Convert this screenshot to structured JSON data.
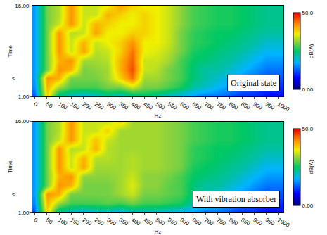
{
  "chart_data": [
    {
      "type": "heatmap",
      "x_label": "Hz",
      "y_label": "Time",
      "y_unit": "s",
      "annotations": [
        "Original state"
      ],
      "xlim": [
        -10,
        1020
      ],
      "xticks": [
        0,
        50,
        100,
        150,
        200,
        250,
        300,
        350,
        400,
        450,
        500,
        550,
        600,
        650,
        700,
        750,
        800,
        850,
        900,
        950,
        1000
      ],
      "ylim": [
        1,
        16
      ],
      "yticks": [
        {
          "value": 1,
          "label": "1.00"
        },
        {
          "value": 16,
          "label": "16.00"
        }
      ],
      "x": [
        0,
        50,
        100,
        150,
        200,
        250,
        300,
        350,
        400,
        450,
        500,
        550,
        600,
        650,
        700,
        750,
        800,
        850,
        900,
        950,
        1000
      ],
      "y": [
        1,
        2.5,
        4,
        5.5,
        7,
        8.5,
        10,
        11.5,
        13,
        14.5,
        16
      ],
      "z": [
        [
          12,
          38,
          22,
          20,
          18,
          20,
          22,
          20,
          22,
          24,
          22,
          20,
          18,
          16,
          14,
          14,
          12,
          10,
          10,
          8,
          8
        ],
        [
          15,
          40,
          32,
          28,
          28,
          28,
          30,
          30,
          34,
          30,
          30,
          28,
          26,
          22,
          20,
          18,
          16,
          14,
          12,
          10,
          10
        ],
        [
          16,
          42,
          40,
          30,
          30,
          30,
          32,
          38,
          44,
          32,
          32,
          30,
          28,
          24,
          22,
          20,
          18,
          16,
          14,
          12,
          12
        ],
        [
          16,
          30,
          42,
          40,
          30,
          31,
          32,
          40,
          46,
          34,
          33,
          30,
          28,
          24,
          22,
          22,
          20,
          18,
          16,
          14,
          14
        ],
        [
          16,
          30,
          40,
          42,
          32,
          32,
          33,
          40,
          45,
          34,
          34,
          32,
          28,
          25,
          24,
          23,
          22,
          20,
          18,
          16,
          16
        ],
        [
          16,
          30,
          42,
          34,
          41,
          33,
          34,
          38,
          44,
          36,
          35,
          33,
          30,
          26,
          25,
          24,
          23,
          22,
          20,
          18,
          18
        ],
        [
          16,
          30,
          42,
          34,
          40,
          34,
          36,
          38,
          42,
          36,
          36,
          34,
          30,
          27,
          26,
          25,
          24,
          23,
          22,
          20,
          20
        ],
        [
          16,
          30,
          42,
          33,
          34,
          41,
          36,
          36,
          38,
          38,
          36,
          34,
          30,
          27,
          26,
          25,
          25,
          24,
          23,
          22,
          22
        ],
        [
          16,
          30,
          34,
          42,
          34,
          40,
          38,
          36,
          36,
          38,
          36,
          34,
          31,
          28,
          27,
          26,
          26,
          25,
          24,
          23,
          23
        ],
        [
          16,
          30,
          33,
          42,
          34,
          34,
          40,
          38,
          36,
          38,
          36,
          34,
          31,
          28,
          27,
          26,
          26,
          25,
          24,
          23,
          23
        ],
        [
          16,
          30,
          33,
          42,
          34,
          34,
          36,
          41,
          38,
          36,
          36,
          34,
          31,
          28,
          27,
          26,
          26,
          25,
          24,
          23,
          23
        ]
      ],
      "colorbar": {
        "label": "dB(A)",
        "range": [
          0,
          50
        ],
        "ticks": [
          {
            "value": 0,
            "label": "0.00"
          },
          {
            "value": 50,
            "label": "50.0"
          }
        ]
      }
    },
    {
      "type": "heatmap",
      "x_label": "Hz",
      "y_label": "Time",
      "y_unit": "s",
      "annotations": [
        "With vibration absorber"
      ],
      "xlim": [
        -10,
        1020
      ],
      "xticks": [
        0,
        50,
        100,
        150,
        200,
        250,
        300,
        350,
        400,
        450,
        500,
        550,
        600,
        650,
        700,
        750,
        800,
        850,
        900,
        950,
        1000
      ],
      "ylim": [
        1,
        16
      ],
      "yticks": [
        {
          "value": 1,
          "label": "1.00"
        },
        {
          "value": 16,
          "label": "16.00"
        }
      ],
      "x": [
        0,
        50,
        100,
        150,
        200,
        250,
        300,
        350,
        400,
        450,
        500,
        550,
        600,
        650,
        700,
        750,
        800,
        850,
        900,
        950,
        1000
      ],
      "y": [
        1,
        2.5,
        4,
        5.5,
        7,
        8.5,
        10,
        11.5,
        13,
        14.5,
        16
      ],
      "z": [
        [
          12,
          38,
          22,
          20,
          18,
          20,
          20,
          18,
          20,
          20,
          20,
          19,
          18,
          16,
          14,
          14,
          12,
          10,
          10,
          8,
          8
        ],
        [
          15,
          40,
          32,
          28,
          28,
          28,
          29,
          28,
          30,
          28,
          28,
          27,
          26,
          22,
          20,
          18,
          16,
          14,
          12,
          10,
          10
        ],
        [
          16,
          42,
          40,
          30,
          30,
          30,
          30,
          32,
          34,
          30,
          30,
          29,
          28,
          24,
          22,
          20,
          18,
          16,
          14,
          12,
          12
        ],
        [
          16,
          30,
          42,
          40,
          30,
          30,
          30,
          32,
          35,
          31,
          31,
          29,
          28,
          24,
          22,
          22,
          20,
          18,
          16,
          14,
          14
        ],
        [
          16,
          30,
          40,
          42,
          31,
          31,
          31,
          32,
          34,
          31,
          31,
          30,
          28,
          25,
          24,
          23,
          22,
          20,
          18,
          16,
          16
        ],
        [
          16,
          30,
          42,
          34,
          41,
          32,
          32,
          32,
          33,
          32,
          32,
          31,
          30,
          26,
          25,
          24,
          23,
          22,
          20,
          18,
          18
        ],
        [
          16,
          30,
          42,
          34,
          40,
          33,
          33,
          32,
          33,
          32,
          32,
          31,
          30,
          27,
          26,
          25,
          24,
          23,
          22,
          20,
          20
        ],
        [
          16,
          30,
          42,
          33,
          34,
          40,
          33,
          32,
          32,
          32,
          32,
          31,
          30,
          27,
          26,
          25,
          25,
          24,
          23,
          22,
          22
        ],
        [
          16,
          30,
          34,
          42,
          34,
          39,
          34,
          32,
          32,
          32,
          32,
          31,
          30,
          28,
          27,
          26,
          26,
          25,
          24,
          23,
          23
        ],
        [
          16,
          30,
          33,
          42,
          34,
          34,
          38,
          32,
          32,
          32,
          32,
          31,
          30,
          28,
          27,
          26,
          26,
          25,
          24,
          23,
          23
        ],
        [
          16,
          30,
          33,
          42,
          34,
          34,
          34,
          38,
          32,
          32,
          32,
          31,
          30,
          28,
          27,
          26,
          26,
          25,
          24,
          23,
          23
        ]
      ],
      "colorbar": {
        "label": "dB(A)",
        "range": [
          0,
          50
        ],
        "ticks": [
          {
            "value": 0,
            "label": "0.00"
          },
          {
            "value": 50,
            "label": "50.0"
          }
        ]
      }
    }
  ]
}
